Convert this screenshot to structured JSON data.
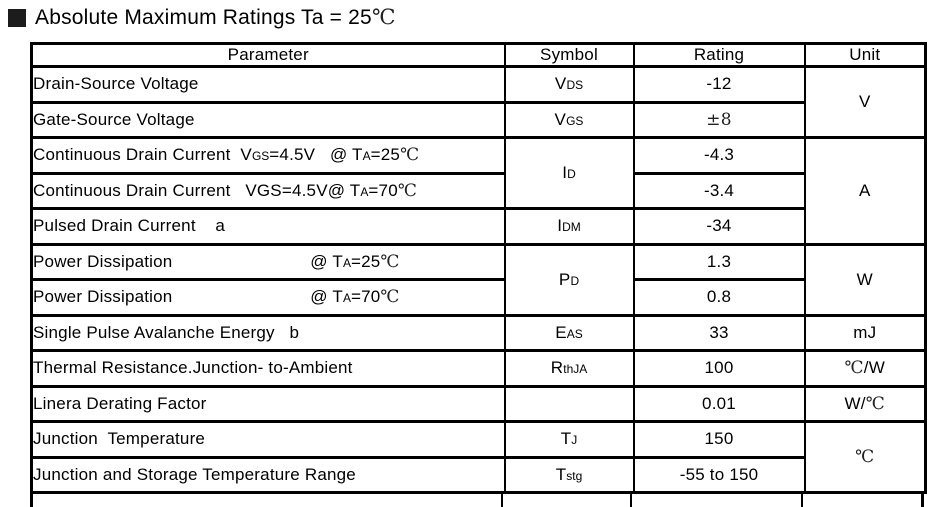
{
  "title": {
    "segments": [
      {
        "t": "Absolute Maximum Ratings Ta = 25"
      },
      {
        "t": "℃",
        "serif": true
      }
    ]
  },
  "colors": {
    "text": "#000000",
    "border": "#000000",
    "marker": "#1c1c1c"
  },
  "table": {
    "headers": [
      "Parameter",
      "Symbol",
      "Rating",
      "Unit"
    ],
    "rows": [
      {
        "parameter": [
          {
            "t": "Drain-Source Voltage"
          }
        ],
        "symbol": [
          {
            "t": "V"
          },
          {
            "t": "DS",
            "sub": true
          }
        ],
        "rating": [
          {
            "t": "-12"
          }
        ],
        "unit": [
          {
            "t": "V"
          }
        ]
      },
      {
        "parameter": [
          {
            "t": "Gate-Source Voltage"
          }
        ],
        "symbol": [
          {
            "t": "V"
          },
          {
            "t": "GS",
            "sub": true
          }
        ],
        "rating": [
          {
            "t": "±8",
            "serif": true
          }
        ]
      },
      {
        "parameter": [
          {
            "t": "Continuous Drain Current  V"
          },
          {
            "t": "GS",
            "sub": true
          },
          {
            "t": "=4.5V   @ T"
          },
          {
            "t": "A",
            "sub": true
          },
          {
            "t": "=25"
          },
          {
            "t": "℃",
            "serif": true
          }
        ],
        "symbol": [
          {
            "t": "I"
          },
          {
            "t": "D",
            "sub": true
          }
        ],
        "rating": [
          {
            "t": "-4.3"
          }
        ],
        "unit": [
          {
            "t": "A"
          }
        ]
      },
      {
        "parameter": [
          {
            "t": "Continuous Drain Current   VGS=4.5V@ T"
          },
          {
            "t": "A",
            "sub": true
          },
          {
            "t": "=70"
          },
          {
            "t": "℃",
            "serif": true
          }
        ],
        "rating": [
          {
            "t": "-3.4"
          }
        ]
      },
      {
        "parameter": [
          {
            "t": "Pulsed Drain Current    a"
          }
        ],
        "symbol": [
          {
            "t": "I"
          },
          {
            "t": "DM",
            "sub": true
          }
        ],
        "rating": [
          {
            "t": "-34"
          }
        ]
      },
      {
        "parameter": [
          {
            "t": "Power Dissipation                            @ T"
          },
          {
            "t": "A",
            "sub": true
          },
          {
            "t": "=25"
          },
          {
            "t": "℃",
            "serif": true
          }
        ],
        "symbol": [
          {
            "t": "P"
          },
          {
            "t": "D",
            "sub": true
          }
        ],
        "rating": [
          {
            "t": "1.3"
          }
        ],
        "unit": [
          {
            "t": "W"
          }
        ]
      },
      {
        "parameter": [
          {
            "t": "Power Dissipation                            @ T"
          },
          {
            "t": "A",
            "sub": true
          },
          {
            "t": "=70"
          },
          {
            "t": "℃",
            "serif": true
          }
        ],
        "rating": [
          {
            "t": "0.8"
          }
        ]
      },
      {
        "parameter": [
          {
            "t": "Single Pulse Avalanche Energy   b"
          }
        ],
        "symbol": [
          {
            "t": "E"
          },
          {
            "t": "AS",
            "sub": true
          }
        ],
        "rating": [
          {
            "t": "33"
          }
        ],
        "unit": [
          {
            "t": "mJ"
          }
        ]
      },
      {
        "parameter": [
          {
            "t": "Thermal Resistance.Junction- to-Ambient"
          }
        ],
        "symbol": [
          {
            "t": "R"
          },
          {
            "t": "thJA",
            "sub": true
          }
        ],
        "rating": [
          {
            "t": "100"
          }
        ],
        "unit": [
          {
            "t": "℃",
            "serif": true
          },
          {
            "t": "/W"
          }
        ]
      },
      {
        "parameter": [
          {
            "t": "Linera Derating Factor"
          }
        ],
        "symbol": [],
        "rating": [
          {
            "t": "0.01"
          }
        ],
        "unit": [
          {
            "t": "W/"
          },
          {
            "t": "℃",
            "serif": true
          }
        ]
      },
      {
        "parameter": [
          {
            "t": "Junction  Temperature"
          }
        ],
        "symbol": [
          {
            "t": "T"
          },
          {
            "t": "J",
            "sub": true
          }
        ],
        "rating": [
          {
            "t": "150"
          }
        ],
        "unit": [
          {
            "t": "℃",
            "serif": true
          }
        ]
      },
      {
        "parameter": [
          {
            "t": "Junction and Storage Temperature Range"
          }
        ],
        "symbol": [
          {
            "t": "T"
          },
          {
            "t": "stg",
            "sub": true
          }
        ],
        "rating": [
          {
            "t": "-55 to 150"
          }
        ]
      }
    ]
  }
}
